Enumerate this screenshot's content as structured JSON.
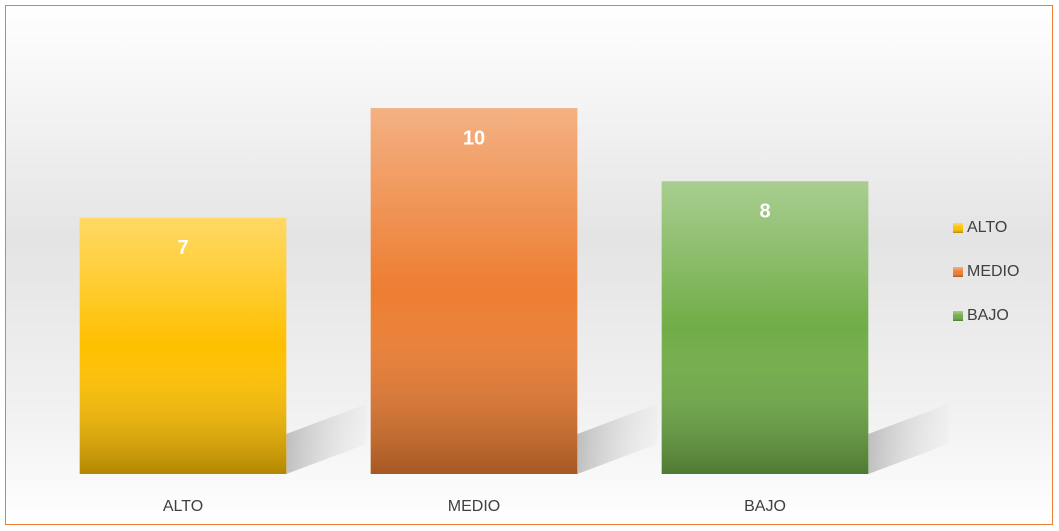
{
  "chart_data": {
    "type": "bar",
    "categories": [
      "ALTO",
      "MEDIO",
      "BAJO"
    ],
    "values": [
      7,
      10,
      8
    ],
    "colors": [
      "#ffc000",
      "#ed7d31",
      "#70ad47"
    ],
    "ylim": [
      0,
      12
    ],
    "legend": "right"
  }
}
